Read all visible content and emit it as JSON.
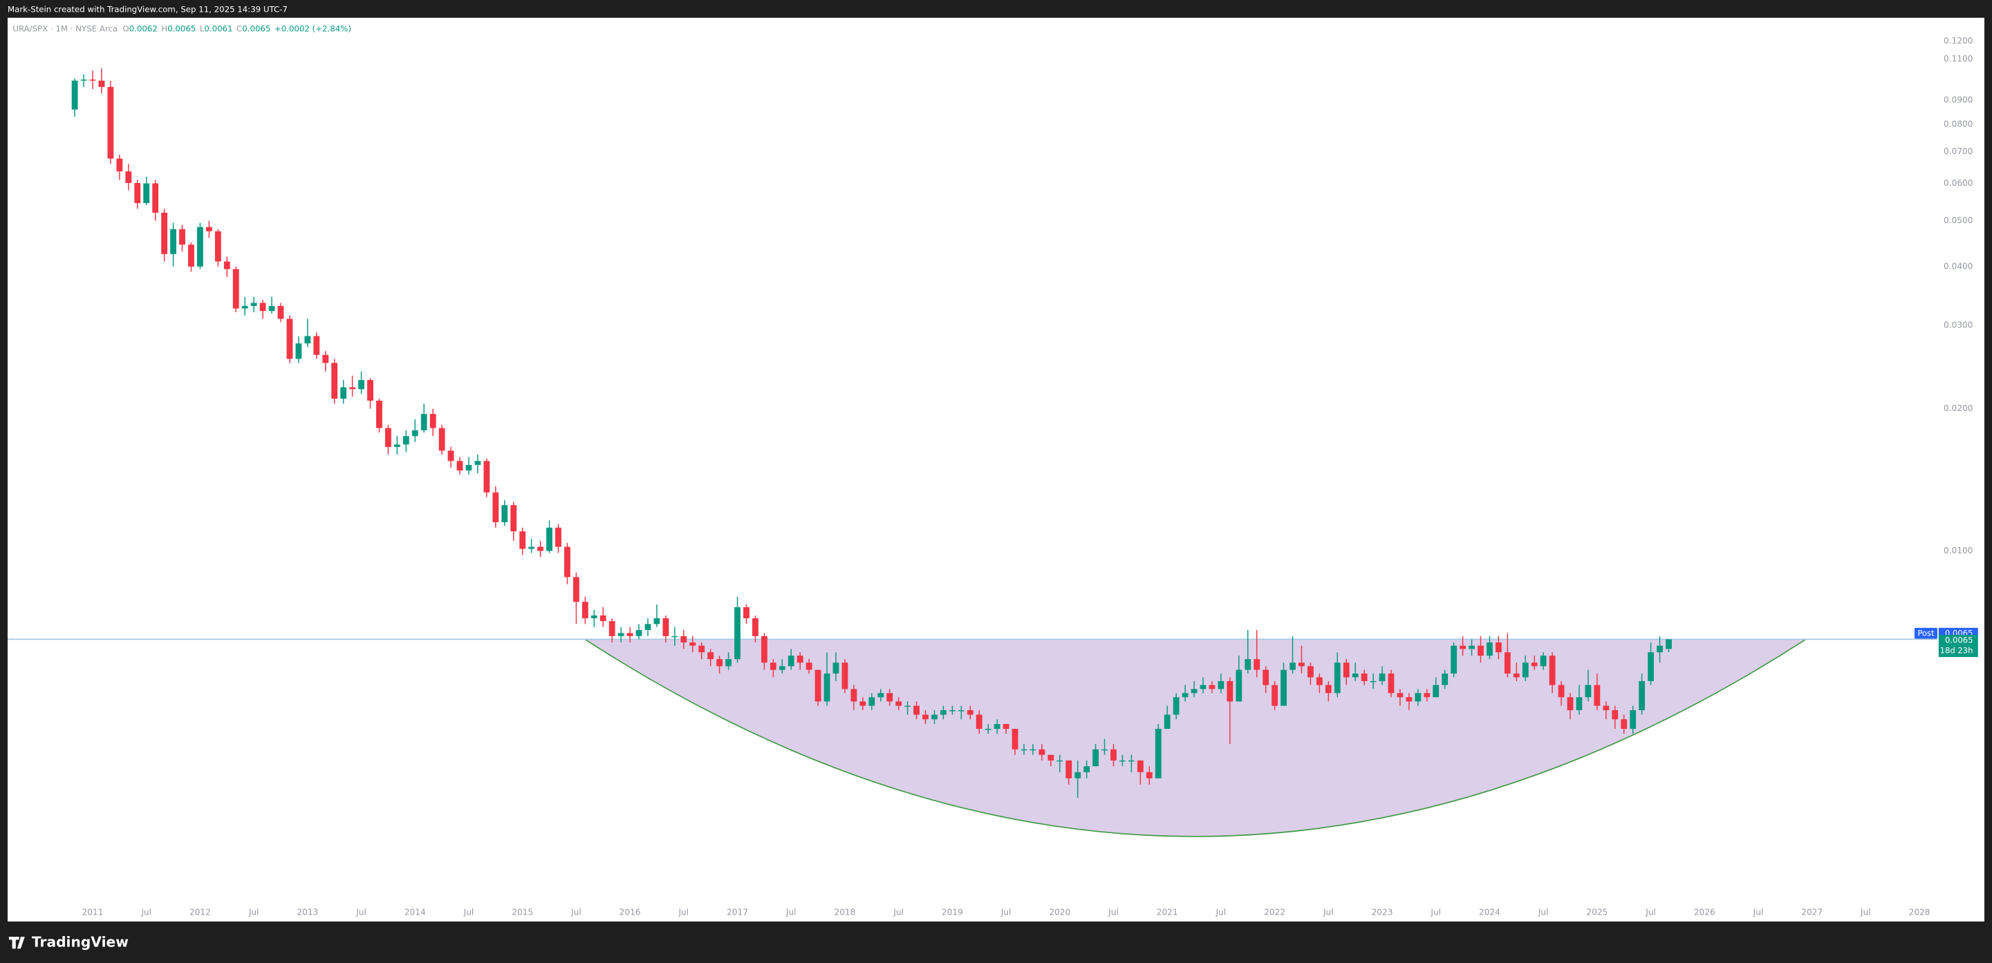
{
  "header": {
    "attribution": "Mark-Stein created with TradingView.com, Sep 11, 2025 14:39 UTC-7"
  },
  "footer": {
    "brand": "TradingView"
  },
  "chart_data": {
    "type": "candlestick",
    "symbol": "URA/SPX · 1M · NYSE Arca",
    "ohlc_legend": [
      {
        "label": "O",
        "value": 0.0062
      },
      {
        "label": "H",
        "value": 0.0065
      },
      {
        "label": "L",
        "value": 0.0061
      },
      {
        "label": "C",
        "value": 0.0065
      }
    ],
    "change": "+0.0002 (+2.84%)",
    "up_color": "#089981",
    "down_color": "#f23645",
    "log_scale": true,
    "grid": false,
    "last_price": 0.0065,
    "countdown": "18d 23h",
    "post_label": "Post",
    "post_price": 0.0065,
    "post_color": "#2962ff",
    "price_line_color": "#a9c8e4",
    "xlim": [
      "2010-04",
      "2028-03"
    ],
    "ylim": [
      0.001642,
      0.1345
    ],
    "yticks": [
      {
        "value": 0.12,
        "label": "0.1200"
      },
      {
        "value": 0.11,
        "label": "0.1100"
      },
      {
        "value": 0.09,
        "label": "0.0900"
      },
      {
        "value": 0.08,
        "label": "0.0800"
      },
      {
        "value": 0.07,
        "label": "0.0700"
      },
      {
        "value": 0.06,
        "label": "0.0600"
      },
      {
        "value": 0.05,
        "label": "0.0500"
      },
      {
        "value": 0.04,
        "label": "0.0400"
      },
      {
        "value": 0.03,
        "label": "0.0300"
      },
      {
        "value": 0.02,
        "label": "0.0200"
      },
      {
        "value": 0.01,
        "label": "0.0100"
      }
    ],
    "xticks": [
      {
        "value": "2011-01",
        "label": "2011"
      },
      {
        "value": "2011-07",
        "label": "Jul"
      },
      {
        "value": "2012-01",
        "label": "2012"
      },
      {
        "value": "2012-07",
        "label": "Jul"
      },
      {
        "value": "2013-01",
        "label": "2013"
      },
      {
        "value": "2013-07",
        "label": "Jul"
      },
      {
        "value": "2014-01",
        "label": "2014"
      },
      {
        "value": "2014-07",
        "label": "Jul"
      },
      {
        "value": "2015-01",
        "label": "2015"
      },
      {
        "value": "2015-07",
        "label": "Jul"
      },
      {
        "value": "2016-01",
        "label": "2016"
      },
      {
        "value": "2016-07",
        "label": "Jul"
      },
      {
        "value": "2017-01",
        "label": "2017"
      },
      {
        "value": "2017-07",
        "label": "Jul"
      },
      {
        "value": "2018-01",
        "label": "2018"
      },
      {
        "value": "2018-07",
        "label": "Jul"
      },
      {
        "value": "2019-01",
        "label": "2019"
      },
      {
        "value": "2019-07",
        "label": "Jul"
      },
      {
        "value": "2020-01",
        "label": "2020"
      },
      {
        "value": "2020-07",
        "label": "Jul"
      },
      {
        "value": "2021-01",
        "label": "2021"
      },
      {
        "value": "2021-07",
        "label": "Jul"
      },
      {
        "value": "2022-01",
        "label": "2022"
      },
      {
        "value": "2022-07",
        "label": "Jul"
      },
      {
        "value": "2023-01",
        "label": "2023"
      },
      {
        "value": "2023-07",
        "label": "Jul"
      },
      {
        "value": "2024-01",
        "label": "2024"
      },
      {
        "value": "2024-07",
        "label": "Jul"
      },
      {
        "value": "2025-01",
        "label": "2025"
      },
      {
        "value": "2025-07",
        "label": "Jul"
      },
      {
        "value": "2026-01",
        "label": "2026"
      },
      {
        "value": "2026-07",
        "label": "Jul"
      },
      {
        "value": "2027-01",
        "label": "2027"
      },
      {
        "value": "2027-07",
        "label": "Jul"
      },
      {
        "value": "2028-01",
        "label": "2028"
      }
    ],
    "x": [
      "2010-11",
      "2010-12",
      "2011-01",
      "2011-02",
      "2011-03",
      "2011-04",
      "2011-05",
      "2011-06",
      "2011-07",
      "2011-08",
      "2011-09",
      "2011-10",
      "2011-11",
      "2011-12",
      "2012-01",
      "2012-02",
      "2012-03",
      "2012-04",
      "2012-05",
      "2012-06",
      "2012-07",
      "2012-08",
      "2012-09",
      "2012-10",
      "2012-11",
      "2012-12",
      "2013-01",
      "2013-02",
      "2013-03",
      "2013-04",
      "2013-05",
      "2013-06",
      "2013-07",
      "2013-08",
      "2013-09",
      "2013-10",
      "2013-11",
      "2013-12",
      "2014-01",
      "2014-02",
      "2014-03",
      "2014-04",
      "2014-05",
      "2014-06",
      "2014-07",
      "2014-08",
      "2014-09",
      "2014-10",
      "2014-11",
      "2014-12",
      "2015-01",
      "2015-02",
      "2015-03",
      "2015-04",
      "2015-05",
      "2015-06",
      "2015-07",
      "2015-08",
      "2015-09",
      "2015-10",
      "2015-11",
      "2015-12",
      "2016-01",
      "2016-02",
      "2016-03",
      "2016-04",
      "2016-05",
      "2016-06",
      "2016-07",
      "2016-08",
      "2016-09",
      "2016-10",
      "2016-11",
      "2016-12",
      "2017-01",
      "2017-02",
      "2017-03",
      "2017-04",
      "2017-05",
      "2017-06",
      "2017-07",
      "2017-08",
      "2017-09",
      "2017-10",
      "2017-11",
      "2017-12",
      "2018-01",
      "2018-02",
      "2018-03",
      "2018-04",
      "2018-05",
      "2018-06",
      "2018-07",
      "2018-08",
      "2018-09",
      "2018-10",
      "2018-11",
      "2018-12",
      "2019-01",
      "2019-02",
      "2019-03",
      "2019-04",
      "2019-05",
      "2019-06",
      "2019-07",
      "2019-08",
      "2019-09",
      "2019-10",
      "2019-11",
      "2019-12",
      "2020-01",
      "2020-02",
      "2020-03",
      "2020-04",
      "2020-05",
      "2020-06",
      "2020-07",
      "2020-08",
      "2020-09",
      "2020-10",
      "2020-11",
      "2020-12",
      "2021-01",
      "2021-02",
      "2021-03",
      "2021-04",
      "2021-05",
      "2021-06",
      "2021-07",
      "2021-08",
      "2021-09",
      "2021-10",
      "2021-11",
      "2021-12",
      "2022-01",
      "2022-02",
      "2022-03",
      "2022-04",
      "2022-05",
      "2022-06",
      "2022-07",
      "2022-08",
      "2022-09",
      "2022-10",
      "2022-11",
      "2022-12",
      "2023-01",
      "2023-02",
      "2023-03",
      "2023-04",
      "2023-05",
      "2023-06",
      "2023-07",
      "2023-08",
      "2023-09",
      "2023-10",
      "2023-11",
      "2023-12",
      "2024-01",
      "2024-02",
      "2024-03",
      "2024-04",
      "2024-05",
      "2024-06",
      "2024-07",
      "2024-08",
      "2024-09",
      "2024-10",
      "2024-11",
      "2024-12",
      "2025-01",
      "2025-02",
      "2025-03",
      "2025-04",
      "2025-05",
      "2025-06",
      "2025-07",
      "2025-08",
      "2025-09"
    ],
    "open": [
      0.086,
      0.099,
      0.0995,
      0.099,
      0.096,
      0.0677,
      0.0636,
      0.0601,
      0.0545,
      0.06,
      0.052,
      0.0425,
      0.048,
      0.0445,
      0.04,
      0.0485,
      0.0475,
      0.041,
      0.0395,
      0.0326,
      0.033,
      0.0335,
      0.0322,
      0.033,
      0.031,
      0.0255,
      0.0275,
      0.0285,
      0.026,
      0.025,
      0.021,
      0.0222,
      0.022,
      0.023,
      0.0208,
      0.0182,
      0.0166,
      0.0168,
      0.0175,
      0.018,
      0.0195,
      0.0182,
      0.0163,
      0.0155,
      0.0148,
      0.0152,
      0.0155,
      0.0133,
      0.0115,
      0.0125,
      0.011,
      0.0101,
      0.0102,
      0.01,
      0.0112,
      0.0102,
      0.0088,
      0.0078,
      0.0072,
      0.0073,
      0.0071,
      0.0066,
      0.0067,
      0.0066,
      0.0068,
      0.007,
      0.0072,
      0.0066,
      0.0066,
      0.0064,
      0.0063,
      0.0061,
      0.0059,
      0.0057,
      0.0059,
      0.0076,
      0.0072,
      0.0066,
      0.0058,
      0.0056,
      0.0057,
      0.006,
      0.0058,
      0.0056,
      0.0048,
      0.0055,
      0.0058,
      0.0051,
      0.0048,
      0.0047,
      0.0049,
      0.005,
      0.0048,
      0.0047,
      0.0047,
      0.0045,
      0.0044,
      0.0045,
      0.0046,
      0.0046,
      0.0046,
      0.0045,
      0.0042,
      0.0042,
      0.0043,
      0.0042,
      0.0038,
      0.0038,
      0.0038,
      0.0037,
      0.0036,
      0.0036,
      0.0033,
      0.0034,
      0.0035,
      0.0038,
      0.0038,
      0.0036,
      0.0036,
      0.0036,
      0.0034,
      0.0033,
      0.0042,
      0.0045,
      0.0049,
      0.005,
      0.0051,
      0.0052,
      0.0051,
      0.0053,
      0.0048,
      0.0056,
      0.0059,
      0.0056,
      0.0052,
      0.0047,
      0.0056,
      0.0058,
      0.0057,
      0.0054,
      0.0052,
      0.005,
      0.0058,
      0.0054,
      0.0055,
      0.0053,
      0.0053,
      0.0055,
      0.005,
      0.0049,
      0.0048,
      0.005,
      0.0049,
      0.0052,
      0.0055,
      0.0063,
      0.0062,
      0.0063,
      0.006,
      0.0064,
      0.0061,
      0.0055,
      0.0054,
      0.0058,
      0.0057,
      0.006,
      0.0052,
      0.0049,
      0.0046,
      0.0049,
      0.0052,
      0.0047,
      0.0046,
      0.0044,
      0.0042,
      0.0046,
      0.0053,
      0.0061,
      0.0062
    ],
    "high": [
      0.1,
      0.102,
      0.104,
      0.105,
      0.099,
      0.069,
      0.066,
      0.061,
      0.062,
      0.061,
      0.053,
      0.0495,
      0.049,
      0.045,
      0.0495,
      0.05,
      0.048,
      0.042,
      0.04,
      0.0345,
      0.0345,
      0.034,
      0.0345,
      0.0335,
      0.0315,
      0.0285,
      0.031,
      0.029,
      0.0265,
      0.0255,
      0.023,
      0.0235,
      0.024,
      0.0232,
      0.021,
      0.0185,
      0.0175,
      0.018,
      0.019,
      0.0205,
      0.02,
      0.0185,
      0.0166,
      0.0158,
      0.0158,
      0.016,
      0.0157,
      0.0137,
      0.0128,
      0.0127,
      0.0112,
      0.0106,
      0.0105,
      0.0116,
      0.0114,
      0.0104,
      0.009,
      0.008,
      0.0075,
      0.0076,
      0.0072,
      0.0069,
      0.0069,
      0.007,
      0.0072,
      0.0077,
      0.0073,
      0.0069,
      0.0068,
      0.0066,
      0.0064,
      0.0062,
      0.006,
      0.0061,
      0.008,
      0.0077,
      0.0073,
      0.0067,
      0.0059,
      0.0059,
      0.0062,
      0.0061,
      0.0059,
      0.0056,
      0.0061,
      0.0061,
      0.0059,
      0.0052,
      0.0049,
      0.005,
      0.0051,
      0.0051,
      0.0049,
      0.0048,
      0.0048,
      0.0046,
      0.0046,
      0.0047,
      0.0047,
      0.0047,
      0.0047,
      0.0046,
      0.0043,
      0.0044,
      0.0043,
      0.0042,
      0.0039,
      0.0039,
      0.0039,
      0.0037,
      0.0037,
      0.0036,
      0.0036,
      0.0036,
      0.0039,
      0.004,
      0.0039,
      0.0037,
      0.0037,
      0.0036,
      0.0035,
      0.0043,
      0.0047,
      0.005,
      0.0052,
      0.0053,
      0.0054,
      0.0053,
      0.0055,
      0.0054,
      0.006,
      0.0068,
      0.0068,
      0.0057,
      0.0053,
      0.0058,
      0.0066,
      0.0063,
      0.0058,
      0.0055,
      0.0053,
      0.0061,
      0.0059,
      0.0058,
      0.0056,
      0.0055,
      0.0057,
      0.0056,
      0.0051,
      0.005,
      0.0051,
      0.0051,
      0.0054,
      0.0056,
      0.0064,
      0.0066,
      0.0065,
      0.0066,
      0.0066,
      0.0066,
      0.0067,
      0.0058,
      0.006,
      0.006,
      0.0061,
      0.0061,
      0.0053,
      0.005,
      0.0052,
      0.0056,
      0.0055,
      0.0048,
      0.0047,
      0.0045,
      0.0047,
      0.0055,
      0.0064,
      0.0066,
      0.0065
    ],
    "low": [
      0.083,
      0.096,
      0.095,
      0.093,
      0.066,
      0.061,
      0.058,
      0.053,
      0.054,
      0.05,
      0.041,
      0.04,
      0.043,
      0.039,
      0.0395,
      0.046,
      0.04,
      0.038,
      0.032,
      0.0315,
      0.032,
      0.031,
      0.0318,
      0.0305,
      0.025,
      0.025,
      0.027,
      0.0255,
      0.024,
      0.0205,
      0.0205,
      0.0212,
      0.0215,
      0.02,
      0.0178,
      0.016,
      0.016,
      0.0162,
      0.017,
      0.0178,
      0.0175,
      0.016,
      0.015,
      0.0145,
      0.0145,
      0.0146,
      0.013,
      0.0112,
      0.0113,
      0.0105,
      0.0098,
      0.0099,
      0.0097,
      0.0099,
      0.0099,
      0.0085,
      0.007,
      0.007,
      0.0069,
      0.0069,
      0.0064,
      0.0064,
      0.0064,
      0.0065,
      0.0066,
      0.0069,
      0.0064,
      0.0063,
      0.0062,
      0.0061,
      0.0059,
      0.0057,
      0.0055,
      0.0056,
      0.0058,
      0.007,
      0.0064,
      0.0056,
      0.0054,
      0.0055,
      0.0056,
      0.0056,
      0.0055,
      0.0047,
      0.0047,
      0.0053,
      0.005,
      0.0046,
      0.0046,
      0.0046,
      0.0048,
      0.0047,
      0.0046,
      0.0045,
      0.0044,
      0.0043,
      0.0043,
      0.0044,
      0.0045,
      0.0044,
      0.0044,
      0.0041,
      0.0041,
      0.0041,
      0.0041,
      0.0037,
      0.0037,
      0.0037,
      0.0036,
      0.0035,
      0.0034,
      0.0032,
      0.003,
      0.0033,
      0.0035,
      0.0037,
      0.0035,
      0.0035,
      0.0034,
      0.0032,
      0.0032,
      0.0033,
      0.0042,
      0.0044,
      0.0048,
      0.0049,
      0.005,
      0.005,
      0.005,
      0.0039,
      0.0048,
      0.0055,
      0.0054,
      0.005,
      0.0046,
      0.0047,
      0.0055,
      0.0055,
      0.0052,
      0.005,
      0.0048,
      0.0049,
      0.0052,
      0.0053,
      0.0052,
      0.0051,
      0.0052,
      0.0049,
      0.0047,
      0.0046,
      0.0047,
      0.0048,
      0.0049,
      0.0051,
      0.0054,
      0.006,
      0.006,
      0.0058,
      0.0059,
      0.0059,
      0.0054,
      0.0053,
      0.0053,
      0.0056,
      0.0056,
      0.005,
      0.0047,
      0.0044,
      0.0045,
      0.0048,
      0.0046,
      0.0044,
      0.0042,
      0.0041,
      0.0041,
      0.0045,
      0.0052,
      0.0058,
      0.0061
    ],
    "close": [
      0.099,
      0.0995,
      0.099,
      0.096,
      0.0677,
      0.0636,
      0.0601,
      0.0545,
      0.06,
      0.052,
      0.0425,
      0.048,
      0.0445,
      0.04,
      0.0485,
      0.0475,
      0.041,
      0.0395,
      0.0326,
      0.033,
      0.0335,
      0.0322,
      0.033,
      0.031,
      0.0255,
      0.0275,
      0.0285,
      0.026,
      0.025,
      0.021,
      0.0222,
      0.022,
      0.023,
      0.0208,
      0.0182,
      0.0166,
      0.0168,
      0.0175,
      0.018,
      0.0195,
      0.0182,
      0.0163,
      0.0155,
      0.0148,
      0.0152,
      0.0155,
      0.0133,
      0.0115,
      0.0125,
      0.011,
      0.0101,
      0.0102,
      0.01,
      0.0112,
      0.0102,
      0.0088,
      0.0078,
      0.0072,
      0.0073,
      0.0071,
      0.0066,
      0.0067,
      0.0066,
      0.0068,
      0.007,
      0.0072,
      0.0066,
      0.0066,
      0.0064,
      0.0063,
      0.0061,
      0.0059,
      0.0057,
      0.0059,
      0.0076,
      0.0072,
      0.0066,
      0.0058,
      0.0056,
      0.0057,
      0.006,
      0.0058,
      0.0056,
      0.0048,
      0.0055,
      0.0058,
      0.0051,
      0.0048,
      0.0047,
      0.0049,
      0.005,
      0.0048,
      0.0047,
      0.0047,
      0.0045,
      0.0044,
      0.0045,
      0.0046,
      0.0046,
      0.0046,
      0.0045,
      0.0042,
      0.0042,
      0.0043,
      0.0042,
      0.0038,
      0.0038,
      0.0038,
      0.0037,
      0.0036,
      0.0036,
      0.0033,
      0.0034,
      0.0035,
      0.0038,
      0.0038,
      0.0036,
      0.0036,
      0.0036,
      0.0034,
      0.0033,
      0.0042,
      0.0045,
      0.0049,
      0.005,
      0.0051,
      0.0052,
      0.0051,
      0.0053,
      0.0048,
      0.0056,
      0.0059,
      0.0056,
      0.0052,
      0.0047,
      0.0056,
      0.0058,
      0.0057,
      0.0054,
      0.0052,
      0.005,
      0.0058,
      0.0054,
      0.0055,
      0.0053,
      0.0053,
      0.0055,
      0.005,
      0.0049,
      0.0048,
      0.005,
      0.0049,
      0.0052,
      0.0055,
      0.0063,
      0.0062,
      0.0063,
      0.006,
      0.0064,
      0.0061,
      0.0055,
      0.0054,
      0.0058,
      0.0057,
      0.006,
      0.0052,
      0.0049,
      0.0046,
      0.0049,
      0.0052,
      0.0047,
      0.0046,
      0.0044,
      0.0042,
      0.0046,
      0.0053,
      0.0061,
      0.0063,
      0.0065
    ]
  }
}
